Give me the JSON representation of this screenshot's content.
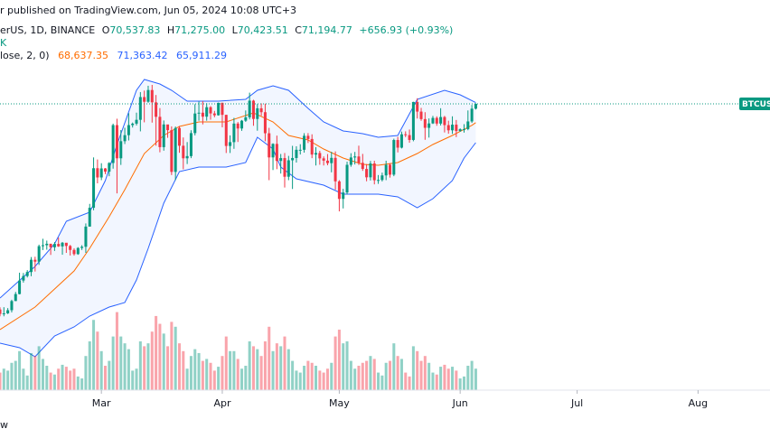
{
  "header": {
    "line1": "r published on TradingView.com, Jun 05, 2024 10:08 UTC+3",
    "symbol": "erUS, 1D, BINANCE",
    "ohlc": [
      {
        "label": "O",
        "value": "70,537.83"
      },
      {
        "label": "H",
        "value": "71,275.00"
      },
      {
        "label": "L",
        "value": "70,423.51"
      },
      {
        "label": "C",
        "value": "71,194.77"
      }
    ],
    "change": "+656.93 (+0.93%)",
    "line3": "K",
    "indicator": "lose, 2, 0)",
    "indicator_values": [
      "68,637.35",
      "71,363.42",
      "65,911.29"
    ]
  },
  "chart_data": {
    "type": "candlestick",
    "xlim": [
      0,
      197.45
    ],
    "xticks": [
      {
        "value": 26,
        "label": "Mar"
      },
      {
        "value": 57,
        "label": "Apr"
      },
      {
        "value": 87,
        "label": "May"
      },
      {
        "value": 118,
        "label": "Jun"
      },
      {
        "value": 148,
        "label": "Jul"
      },
      {
        "value": 179,
        "label": "Aug"
      }
    ],
    "ylim": [
      32450,
      85340
    ],
    "vlim": [
      0,
      400
    ],
    "up_color": "#089981",
    "down_color": "#f23645",
    "price_label": "BTCUSD",
    "watermark": "w",
    "open": [
      43190,
      42580,
      42660,
      43090,
      44340,
      45290,
      47130,
      47750,
      48290,
      49960,
      49700,
      51810,
      51940,
      52140,
      51660,
      52120,
      51780,
      52280,
      51840,
      51300,
      50730,
      51570,
      51730,
      54480,
      57040,
      62430,
      61170,
      62400,
      61960,
      63140,
      68300,
      63780,
      66110,
      66930,
      68300,
      68500,
      69020,
      72120,
      71480,
      73080,
      71400,
      69430,
      65300,
      68390,
      67610,
      61930,
      67910,
      65490,
      63780,
      64080,
      67210,
      69880,
      69990,
      69450,
      70740,
      69890,
      69640,
      71330,
      69700,
      65460,
      65980,
      68510,
      67840,
      68900,
      69360,
      71630,
      69140,
      70590,
      70060,
      67190,
      63900,
      65740,
      63420,
      63810,
      61270,
      63510,
      63820,
      64940,
      64940,
      66840,
      66410,
      64290,
      64500,
      63770,
      63460,
      63120,
      63840,
      60640,
      58250,
      59120,
      62890,
      63890,
      64030,
      63160,
      62330,
      61190,
      63080,
      60790,
      60830,
      61450,
      62900,
      61550,
      66270,
      65230,
      67050,
      66940,
      66280,
      71450,
      70140,
      69120,
      67930,
      68530,
      69280,
      68510,
      69400,
      68300,
      67590,
      68360,
      67490,
      67740,
      67760,
      68800,
      70537.83
    ],
    "close": [
      42580,
      42660,
      43090,
      44340,
      45290,
      47130,
      47750,
      48290,
      49960,
      49700,
      51810,
      51940,
      52140,
      51660,
      52120,
      51780,
      52280,
      51840,
      51300,
      50730,
      51570,
      51730,
      54480,
      57040,
      62430,
      61170,
      62400,
      61960,
      63140,
      68300,
      63780,
      66110,
      66930,
      68300,
      68500,
      69020,
      72120,
      71480,
      73080,
      71400,
      69430,
      65300,
      68390,
      67610,
      61930,
      67910,
      65490,
      63780,
      64080,
      67210,
      69880,
      69990,
      69450,
      70740,
      69890,
      69640,
      71330,
      69700,
      65460,
      65980,
      68510,
      67840,
      68900,
      69360,
      71630,
      69140,
      70590,
      70060,
      67190,
      63900,
      65740,
      63420,
      63810,
      61270,
      63510,
      63820,
      64940,
      64940,
      66840,
      66410,
      64290,
      64500,
      63770,
      63460,
      63120,
      63840,
      60640,
      58250,
      59120,
      62890,
      63890,
      64030,
      63160,
      62330,
      61190,
      63080,
      60790,
      60830,
      61450,
      62900,
      61550,
      66270,
      65230,
      67050,
      66940,
      66280,
      71450,
      70140,
      69120,
      67930,
      68530,
      69280,
      68510,
      69400,
      68300,
      67590,
      68360,
      67490,
      67740,
      67760,
      68800,
      70537.83,
      71194.77
    ],
    "high": [
      43490,
      43500,
      43380,
      44520,
      45580,
      48200,
      48160,
      48550,
      50330,
      50370,
      52020,
      52820,
      52570,
      52150,
      52370,
      52990,
      52380,
      52030,
      51980,
      51530,
      51680,
      51950,
      54910,
      57570,
      63900,
      63620,
      63110,
      62450,
      63250,
      68500,
      69170,
      67630,
      67940,
      69930,
      68650,
      70000,
      72800,
      73000,
      73660,
      73780,
      72400,
      70620,
      68930,
      68340,
      68130,
      68110,
      68170,
      66620,
      65990,
      67600,
      71150,
      71500,
      71560,
      71290,
      70890,
      70240,
      71370,
      71370,
      69700,
      66900,
      69290,
      68720,
      69000,
      70300,
      72720,
      71750,
      71170,
      71260,
      71220,
      67930,
      65830,
      66870,
      64370,
      64500,
      64110,
      65480,
      65420,
      65700,
      67200,
      67210,
      67050,
      65300,
      64800,
      64040,
      64360,
      64660,
      64720,
      60800,
      59620,
      63320,
      64470,
      64650,
      65500,
      64380,
      62990,
      63420,
      63450,
      61500,
      61830,
      63450,
      63130,
      66450,
      66700,
      67420,
      67450,
      67700,
      71480,
      71960,
      70650,
      70060,
      69210,
      69560,
      69500,
      70600,
      69560,
      68900,
      69500,
      69000,
      67860,
      68430,
      70300,
      71050,
      71275
    ],
    "low": [
      42260,
      42260,
      42570,
      42790,
      44330,
      45250,
      46850,
      47550,
      47720,
      48360,
      49260,
      51280,
      51330,
      50620,
      51160,
      51710,
      50650,
      50900,
      50540,
      50520,
      50630,
      51290,
      50900,
      54470,
      56700,
      60370,
      60800,
      61620,
      61340,
      62370,
      59000,
      62880,
      65720,
      66210,
      67970,
      68250,
      67450,
      68680,
      71340,
      68640,
      65500,
      64600,
      64820,
      66570,
      61500,
      60800,
      64530,
      62290,
      63000,
      63800,
      66900,
      68900,
      68400,
      68900,
      69040,
      69370,
      69590,
      68000,
      64500,
      64500,
      65070,
      66000,
      67520,
      68740,
      69080,
      68210,
      67540,
      69570,
      66100,
      60800,
      62180,
      62300,
      61700,
      59800,
      60800,
      59600,
      63200,
      64300,
      64550,
      65860,
      63800,
      62800,
      62900,
      62800,
      62830,
      61870,
      59500,
      56550,
      56950,
      58850,
      62630,
      62940,
      62870,
      62070,
      60650,
      60760,
      60230,
      60300,
      60630,
      60800,
      61150,
      61340,
      64580,
      65120,
      66660,
      65900,
      66100,
      69200,
      68890,
      66300,
      66600,
      68450,
      68210,
      68250,
      67300,
      67130,
      67100,
      66670,
      67390,
      67280,
      67600,
      68600,
      70423.51
    ],
    "volume": [
      18,
      22,
      20,
      28,
      30,
      40,
      22,
      15,
      38,
      35,
      45,
      32,
      25,
      18,
      16,
      22,
      26,
      24,
      20,
      22,
      14,
      12,
      35,
      50,
      72,
      60,
      40,
      25,
      30,
      55,
      80,
      55,
      48,
      42,
      20,
      22,
      50,
      45,
      48,
      60,
      76,
      68,
      58,
      45,
      70,
      65,
      48,
      40,
      22,
      35,
      42,
      38,
      30,
      32,
      28,
      20,
      24,
      35,
      55,
      40,
      40,
      32,
      22,
      25,
      50,
      45,
      42,
      35,
      50,
      65,
      40,
      48,
      45,
      55,
      42,
      30,
      20,
      18,
      25,
      30,
      28,
      25,
      20,
      18,
      22,
      28,
      55,
      62,
      48,
      50,
      30,
      22,
      25,
      28,
      30,
      35,
      32,
      18,
      15,
      28,
      30,
      48,
      35,
      32,
      18,
      14,
      45,
      40,
      30,
      35,
      28,
      18,
      16,
      24,
      26,
      22,
      24,
      20,
      12,
      14,
      25,
      30,
      22
    ],
    "bands": {
      "fill": "rgba(41,98,255,0.06)",
      "upper": {
        "color": "#2962ff",
        "x": [
          0,
          9,
          14,
          17,
          23,
          27,
          30,
          35,
          37,
          41,
          44,
          48,
          56,
          63,
          66,
          70,
          74,
          79,
          83,
          88,
          93,
          97,
          102,
          107,
          114,
          118,
          122
        ],
        "values": [
          44750,
          49055,
          52130,
          55205,
          56435,
          60740,
          65660,
          73040,
          74516,
          73901,
          73040,
          71564,
          71564,
          71810,
          73040,
          73655,
          73040,
          70580,
          68735,
          67505,
          67136,
          66644,
          66890,
          71810,
          73040,
          72425,
          71363.42
        ]
      },
      "basis": {
        "color": "#ff6d00",
        "x": [
          0,
          9,
          19,
          23,
          28,
          32,
          37,
          42,
          46,
          51,
          58,
          65,
          70,
          74,
          79,
          83,
          88,
          93,
          97,
          102,
          107,
          111,
          116,
          121,
          122
        ],
        "values": [
          40445,
          43520,
          48440,
          51515,
          55820,
          59510,
          64430,
          66890,
          68120,
          68735,
          68735,
          69965,
          68735,
          66890,
          66275,
          65045,
          63815,
          62954,
          62831,
          63200,
          64430,
          65660,
          66890,
          68270,
          68637.35
        ]
      },
      "lower": {
        "color": "#2962ff",
        "x": [
          0,
          5,
          9,
          14,
          19,
          23,
          28,
          32,
          35,
          38,
          42,
          46,
          51,
          58,
          63,
          66,
          70,
          72,
          76,
          83,
          88,
          97,
          102,
          107,
          111,
          116,
          119,
          122
        ],
        "values": [
          38600,
          37985,
          36755,
          39584,
          40814,
          42290,
          43520,
          44135,
          47210,
          51515,
          57665,
          61970,
          62585,
          62585,
          63200,
          66644,
          65045,
          62585,
          60986,
          60125,
          58895,
          58895,
          58526,
          57050,
          58280,
          60740,
          63815,
          65911.29
        ]
      }
    }
  }
}
